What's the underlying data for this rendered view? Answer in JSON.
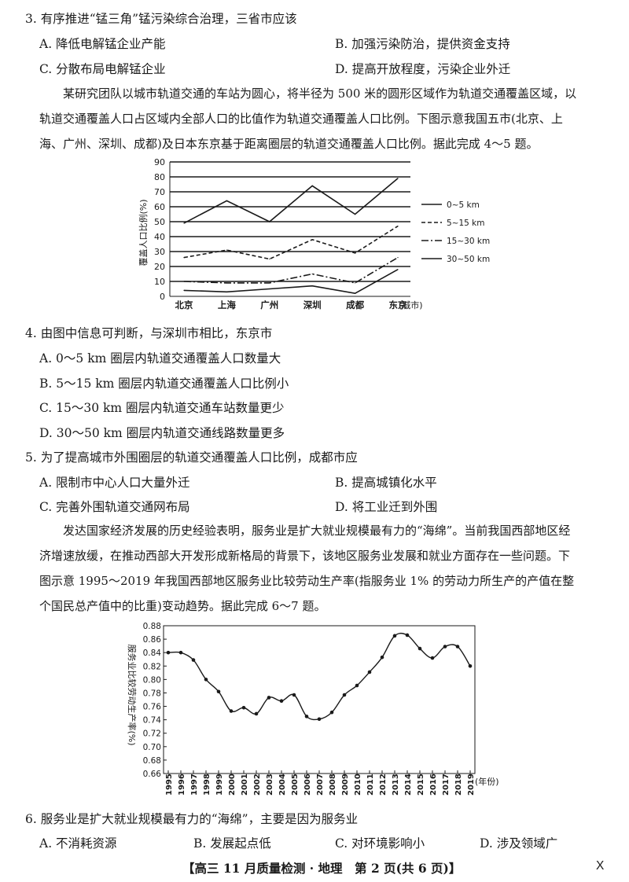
{
  "q3": {
    "stem": "3. 有序推进“锰三角”锰污染综合治理，三省市应该",
    "options": [
      "A. 降低电解锰企业产能",
      "B. 加强污染防治，提供资金支持",
      "C. 分散布局电解锰企业",
      "D. 提高开放程度，污染企业外迁"
    ]
  },
  "intro1": [
    "某研究团队以城市轨道交通的车站为圆心，将半径为 500 米的圆形区域作为轨道交通覆盖区域，以",
    "轨道交通覆盖人口占区域内全部人口的比值作为轨道交通覆盖人口比例。下图示意我国五市(北京、上",
    "海、广州、深圳、成都)及日本东京基于距离圈层的轨道交通覆盖人口比例。据此完成 4～5 题。"
  ],
  "chart1": {
    "ylabel": "覆盖人口比例(%)",
    "xunit": "(城市)",
    "colors": {
      "line": "#1a1a1a"
    }
  },
  "q4": {
    "stem": "4. 由图中信息可判断，与深圳市相比，东京市",
    "options": [
      "A. 0～5 km 圈层内轨道交通覆盖人口数量大",
      "B. 5～15 km 圈层内轨道交通覆盖人口比例小",
      "C. 15～30 km 圈层内轨道交通车站数量更少",
      "D. 30～50 km 圈层内轨道交通线路数量更多"
    ]
  },
  "q5": {
    "stem": "5. 为了提高城市外围圈层的轨道交通覆盖人口比例，成都市应",
    "options": [
      "A. 限制市中心人口大量外迁",
      "B. 提高城镇化水平",
      "C. 完善外围轨道交通网布局",
      "D. 将工业迁到外围"
    ]
  },
  "intro2": [
    "发达国家经济发展的历史经验表明，服务业是扩大就业规模最有力的“海绵”。当前我国西部地区经",
    "济增速放缓，在推动西部大开发形成新格局的背景下，该地区服务业发展和就业方面存在一些问题。下",
    "图示意 1995～2019 年我国西部地区服务业比较劳动生产率(指服务业 1% 的劳动力所生产的产值在整",
    "个国民总产值中的比重)变动趋势。据此完成 6～7 题。"
  ],
  "chart2": {
    "ylabel": "服务业比较劳动生产率(%)",
    "xunit": "(年份)"
  },
  "q6": {
    "stem": "6. 服务业是扩大就业规模最有力的“海绵”，主要是因为服务业",
    "options": [
      "A. 不消耗资源",
      "B. 发展起点低",
      "C. 对环境影响小",
      "D. 涉及领域广"
    ]
  },
  "footer": {
    "text": "【高三 11 月质量检测 · 地理　第 2 页(共 6 页)】",
    "mark": "X"
  },
  "chart_data": [
    {
      "type": "line",
      "categories": [
        "北京",
        "上海",
        "广州",
        "深圳",
        "成都",
        "东京"
      ],
      "ylim": [
        0,
        90
      ],
      "yticks": [
        0,
        10,
        20,
        30,
        40,
        50,
        60,
        70,
        80,
        90
      ],
      "grid": true,
      "legend": "right",
      "series": [
        {
          "name": "0~5 km",
          "style": "solid",
          "values": [
            49,
            64,
            50,
            74,
            55,
            79
          ]
        },
        {
          "name": "5~15 km",
          "style": "dashed",
          "values": [
            26,
            31,
            25,
            38,
            29,
            47
          ]
        },
        {
          "name": "15~30 km",
          "style": "dashdot",
          "values": [
            10,
            9,
            9,
            15,
            9,
            26
          ]
        },
        {
          "name": "30~50 km",
          "style": "solid",
          "values": [
            4,
            3,
            5,
            7,
            2,
            18
          ]
        }
      ]
    },
    {
      "type": "line",
      "x": [
        "1995",
        "1996",
        "1997",
        "1998",
        "1999",
        "2000",
        "2001",
        "2002",
        "2003",
        "2004",
        "2005",
        "2006",
        "2007",
        "2008",
        "2009",
        "2010",
        "2011",
        "2012",
        "2013",
        "2014",
        "2015",
        "2016",
        "2017",
        "2018",
        "2019"
      ],
      "values": [
        0.84,
        0.84,
        0.829,
        0.8,
        0.782,
        0.753,
        0.758,
        0.749,
        0.773,
        0.768,
        0.777,
        0.745,
        0.741,
        0.751,
        0.777,
        0.791,
        0.811,
        0.833,
        0.865,
        0.866,
        0.846,
        0.832,
        0.849,
        0.849,
        0.82
      ],
      "ylim": [
        0.66,
        0.88
      ],
      "yticks": [
        "0.66",
        "0.68",
        "0.70",
        "0.72",
        "0.74",
        "0.76",
        "0.78",
        "0.80",
        "0.82",
        "0.84",
        "0.86",
        "0.88"
      ],
      "grid": false,
      "markers": true
    }
  ]
}
